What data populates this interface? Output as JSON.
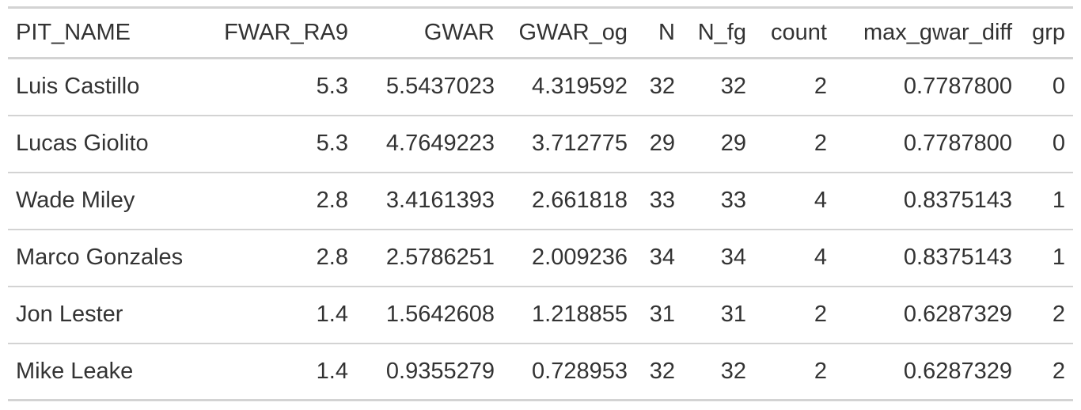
{
  "table": {
    "headers": [
      "PIT_NAME",
      "FWAR_RA9",
      "GWAR",
      "GWAR_og",
      "N",
      "N_fg",
      "count",
      "max_gwar_diff",
      "grp"
    ],
    "rows": [
      [
        "Luis Castillo",
        "5.3",
        "5.5437023",
        "4.319592",
        "32",
        "32",
        "2",
        "0.7787800",
        "0"
      ],
      [
        "Lucas Giolito",
        "5.3",
        "4.7649223",
        "3.712775",
        "29",
        "29",
        "2",
        "0.7787800",
        "0"
      ],
      [
        "Wade Miley",
        "2.8",
        "3.4161393",
        "2.661818",
        "33",
        "33",
        "4",
        "0.8375143",
        "1"
      ],
      [
        "Marco Gonzales",
        "2.8",
        "2.5786251",
        "2.009236",
        "34",
        "34",
        "4",
        "0.8375143",
        "1"
      ],
      [
        "Jon Lester",
        "1.4",
        "1.5642608",
        "1.218855",
        "31",
        "31",
        "2",
        "0.6287329",
        "2"
      ],
      [
        "Mike Leake",
        "1.4",
        "0.9355279",
        "0.728953",
        "32",
        "32",
        "2",
        "0.6287329",
        "2"
      ]
    ]
  }
}
